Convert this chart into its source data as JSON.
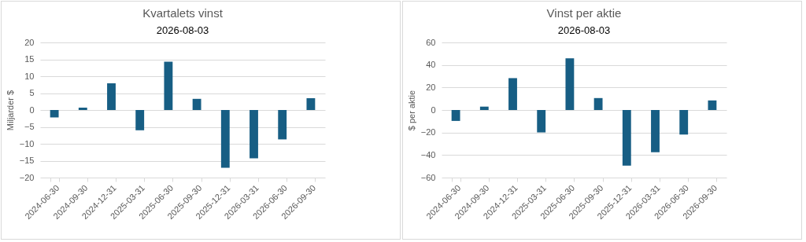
{
  "chart_data": [
    {
      "type": "bar",
      "title": "Kvartalets vinst",
      "subtitle": "2026-08-03",
      "ylabel": "Miljarder $",
      "categories": [
        "2024-06-30",
        "2024-09-30",
        "2024-12-31",
        "2025-03-31",
        "2025-06-30",
        "2025-09-30",
        "2025-12-31",
        "2026-03-31",
        "2026-06-30",
        "2026-09-30"
      ],
      "series": [
        {
          "color": "#175e84",
          "values": [
            -2.2,
            0.7,
            7.9,
            -6.0,
            14.3,
            3.3,
            -17.1,
            -14.3,
            -8.7,
            3.5
          ]
        }
      ],
      "ylim": [
        -20,
        20
      ],
      "yticks": [
        -20,
        -15,
        -10,
        -5,
        0,
        5,
        10,
        15,
        20
      ],
      "grid": "y",
      "legend": false
    },
    {
      "type": "bar",
      "title": "Vinst per aktie",
      "subtitle": "2026-08-03",
      "ylabel": "$ per aktie",
      "categories": [
        "2024-06-30",
        "2024-09-30",
        "2024-12-31",
        "2025-03-31",
        "2025-06-30",
        "2025-09-30",
        "2025-12-31",
        "2026-03-31",
        "2026-06-30",
        "2026-09-30"
      ],
      "series": [
        {
          "color": "#175e84",
          "values": [
            -9.7,
            3.0,
            28.3,
            -19.9,
            45.9,
            10.6,
            -49.4,
            -37.5,
            -21.8,
            8.5
          ]
        }
      ],
      "ylim": [
        -60,
        60
      ],
      "yticks": [
        -60,
        -40,
        -20,
        0,
        20,
        40,
        60
      ],
      "grid": "y",
      "legend": false
    }
  ]
}
